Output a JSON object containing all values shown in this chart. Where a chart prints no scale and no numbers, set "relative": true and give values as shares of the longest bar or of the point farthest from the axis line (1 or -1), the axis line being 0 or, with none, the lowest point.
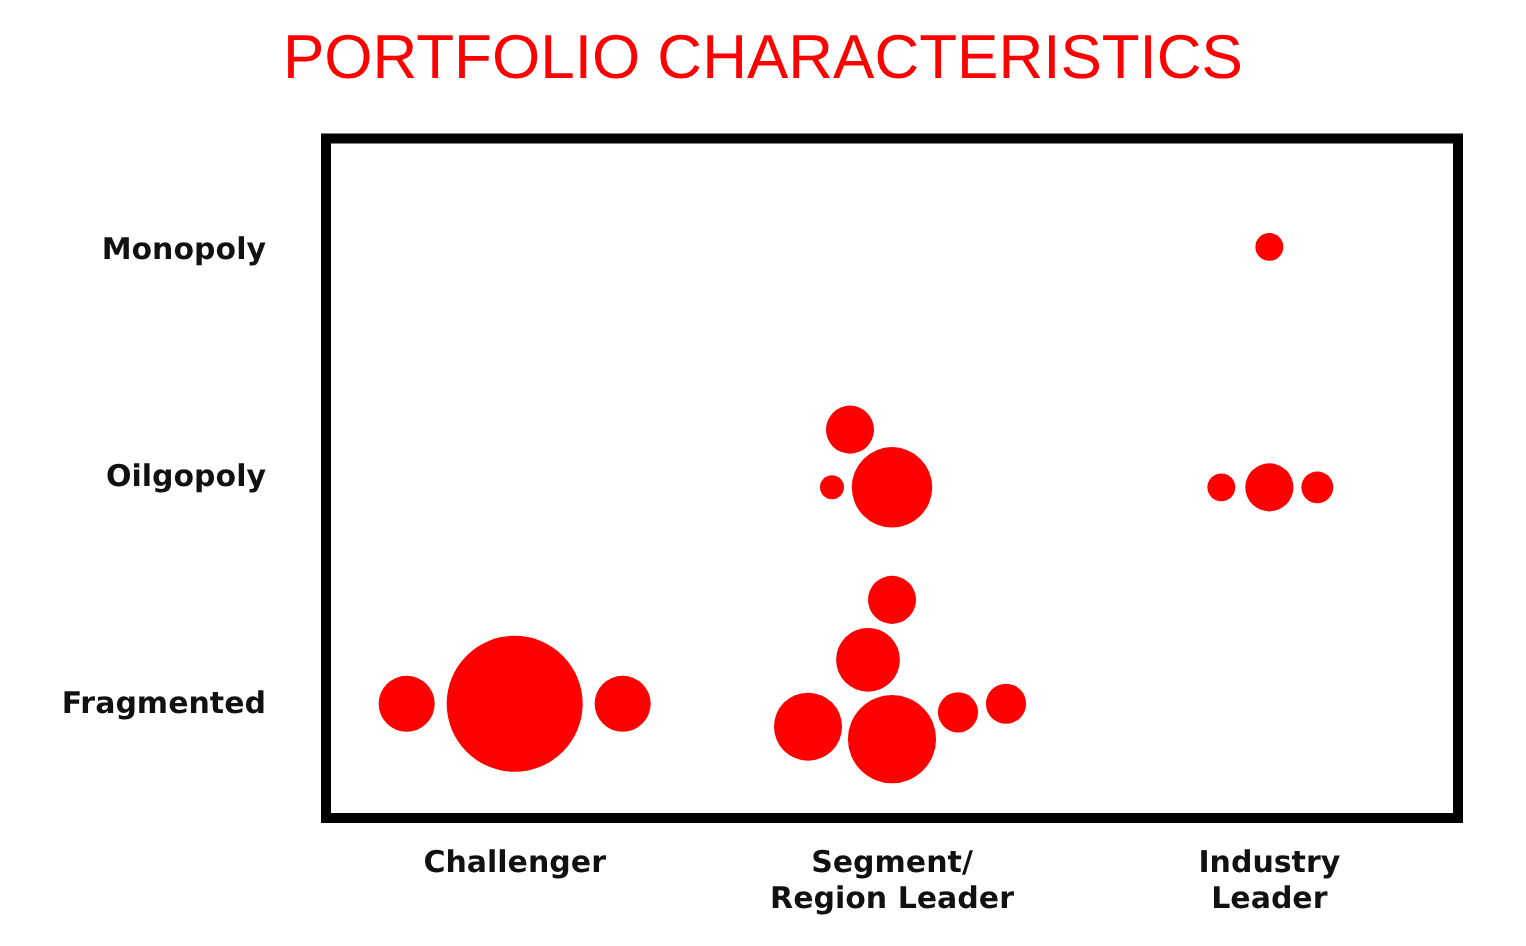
{
  "chart_data": {
    "type": "bubble",
    "title": "PORTFOLIO CHARACTERISTICS",
    "relative": true,
    "categories": [
      "Challenger",
      "Segment/ Region Leader",
      "Industry Leader"
    ],
    "y_categories": [
      "Monopoly",
      "Oilgopoly",
      "Fragmented"
    ],
    "grid": false,
    "legend": false,
    "series": [
      {
        "color": "#ff0000",
        "x": [
          "Challenger",
          "Challenger",
          "Challenger",
          "Segment/ Region Leader",
          "Segment/ Region Leader",
          "Segment/ Region Leader",
          "Segment/ Region Leader",
          "Segment/ Region Leader",
          "Segment/ Region Leader",
          "Segment/ Region Leader",
          "Segment/ Region Leader",
          "Segment/ Region Leader",
          "Industry Leader",
          "Industry Leader",
          "Industry Leader",
          "Industry Leader"
        ],
        "values": [
          0.2,
          0.2,
          0.2,
          0.138,
          0.16,
          0.185,
          0.2,
          0.277,
          0.382,
          0.579,
          0.579,
          0.68,
          1,
          0.579,
          0.579,
          0.579
        ],
        "sizes": [
          1,
          0.17,
          0.17,
          0.42,
          0.25,
          0.087,
          0.087,
          0.22,
          0.125,
          0.35,
          0.031,
          0.125,
          0.042,
          0.125,
          0.042,
          0.055
        ]
      }
    ]
  }
}
